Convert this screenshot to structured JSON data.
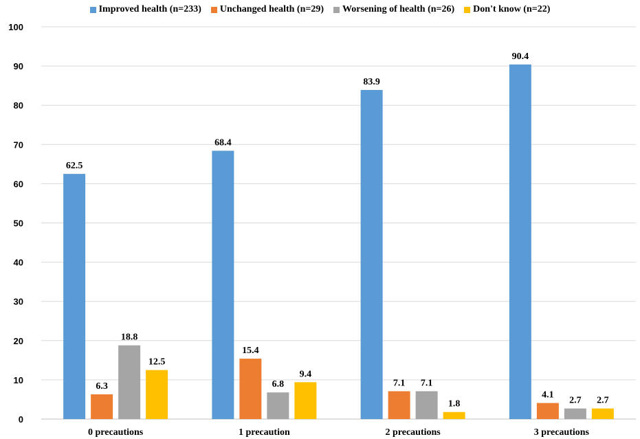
{
  "chart_data": {
    "type": "bar",
    "categories": [
      "0 precautions",
      "1 precaution",
      "2 precautions",
      "3 precautions"
    ],
    "series": [
      {
        "name": "Improved health (n=233)",
        "color": "#5B9BD5",
        "values": [
          62.5,
          68.4,
          83.9,
          90.4
        ]
      },
      {
        "name": "Unchanged health (n=29)",
        "color": "#ED7D31",
        "values": [
          6.3,
          15.4,
          7.1,
          4.1
        ]
      },
      {
        "name": "Worsening of health (n=26)",
        "color": "#A5A5A5",
        "values": [
          18.8,
          6.8,
          7.1,
          2.7
        ]
      },
      {
        "name": "Don't know (n=22)",
        "color": "#FFC000",
        "values": [
          12.5,
          9.4,
          1.8,
          2.7
        ]
      }
    ],
    "data_labels": [
      [
        "62.5",
        "68.4",
        "83.9",
        "90.4"
      ],
      [
        "6.3",
        "15.4",
        "7.1",
        "4.1"
      ],
      [
        "18.8",
        "6.8",
        "7.1",
        "2.7"
      ],
      [
        "12.5",
        "9.4",
        "1.8",
        "2.7"
      ]
    ],
    "y_ticks": [
      "0",
      "10",
      "20",
      "30",
      "40",
      "50",
      "60",
      "70",
      "80",
      "90",
      "100"
    ],
    "ylim": [
      0,
      100
    ],
    "grid": true,
    "legend_position": "top"
  }
}
